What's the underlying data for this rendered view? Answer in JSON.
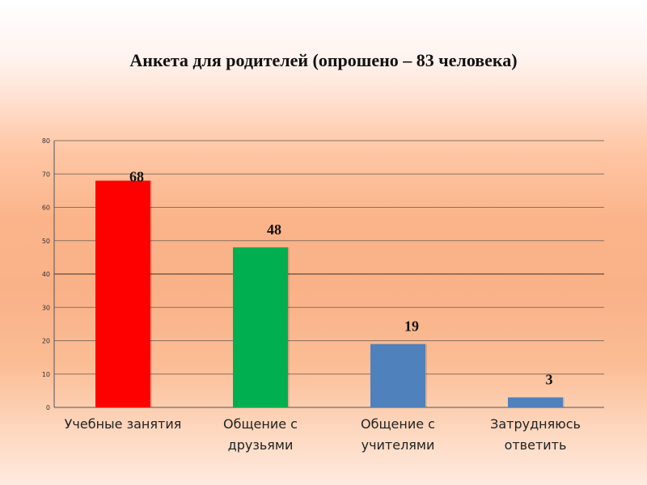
{
  "title": "Анкета для родителей (опрошено – 83 человека)",
  "chart_data": {
    "type": "bar",
    "title": "Анкета для родителей (опрошено – 83 человека)",
    "xlabel": "",
    "ylabel": "",
    "ylim": [
      0,
      80
    ],
    "yticks": [
      0,
      10,
      20,
      30,
      40,
      50,
      60,
      70,
      80
    ],
    "grid": true,
    "categories": [
      [
        "Учебные занятия"
      ],
      [
        "Общение с",
        "друзьями"
      ],
      [
        "Общение с",
        "учителями"
      ],
      [
        "Затрудняюсь",
        "ответить"
      ]
    ],
    "values": [
      68,
      48,
      19,
      3
    ],
    "data_labels": [
      "68",
      "48",
      "19",
      "3"
    ],
    "colors": [
      "#ff0000",
      "#00b050",
      "#4f81bd",
      "#4f81bd"
    ]
  }
}
